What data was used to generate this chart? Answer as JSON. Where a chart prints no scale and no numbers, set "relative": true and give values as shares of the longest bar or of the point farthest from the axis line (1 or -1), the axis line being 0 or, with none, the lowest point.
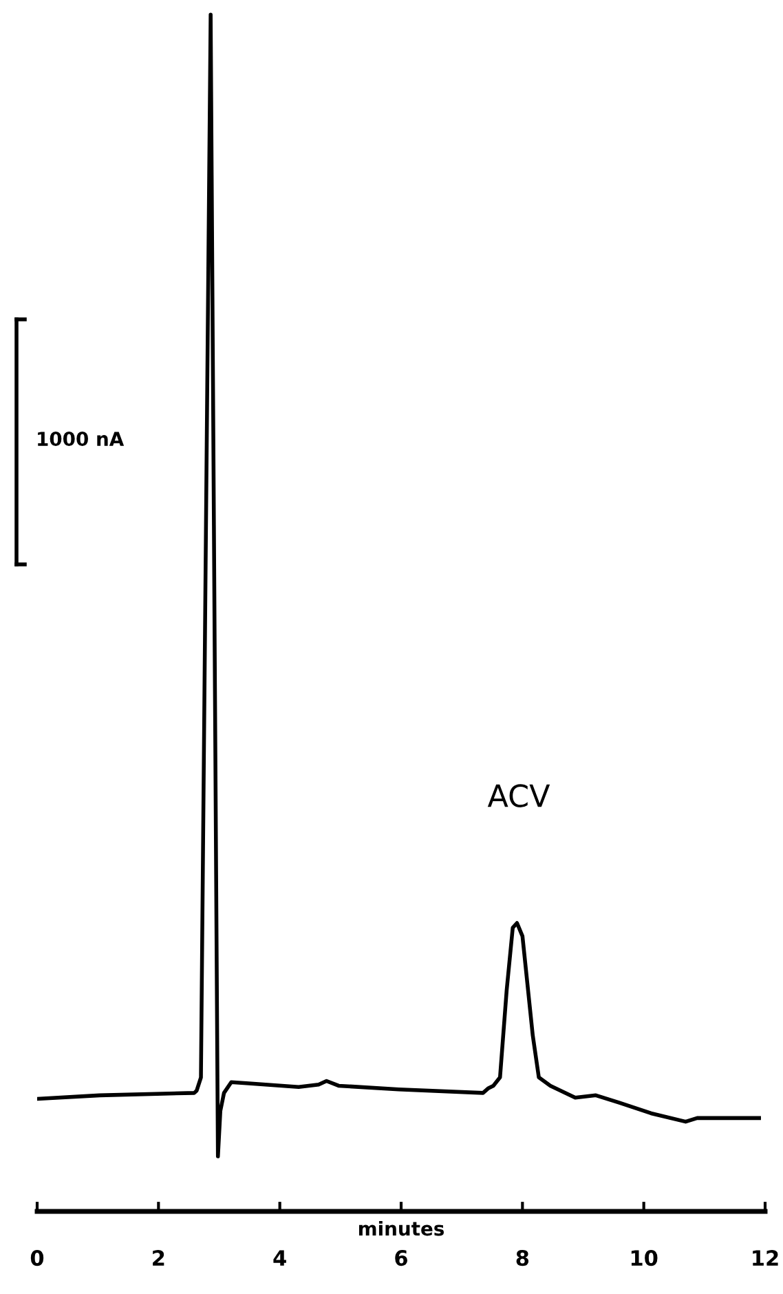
{
  "chart_data": {
    "type": "line",
    "relative": true,
    "xlabel": "minutes",
    "x": [
      0.0,
      1.03,
      2.59,
      2.63,
      2.7,
      2.86,
      2.98,
      3.02,
      3.08,
      3.2,
      3.49,
      4.31,
      4.64,
      4.77,
      4.97,
      5.96,
      7.35,
      7.44,
      7.52,
      7.63,
      7.74,
      7.84,
      7.91,
      8.0,
      8.17,
      8.27,
      8.46,
      8.87,
      9.21,
      9.59,
      10.12,
      10.69,
      10.88,
      11.9
    ],
    "series": [
      {
        "color": "#000000",
        "values": [
          0.094,
          0.097,
          0.099,
          0.101,
          0.112,
          1.0,
          0.046,
          0.084,
          0.099,
          0.108,
          0.107,
          0.104,
          0.106,
          0.109,
          0.105,
          0.102,
          0.099,
          0.103,
          0.105,
          0.112,
          0.185,
          0.237,
          0.241,
          0.23,
          0.147,
          0.112,
          0.105,
          0.095,
          0.097,
          0.091,
          0.082,
          0.075,
          0.078,
          0.078
        ]
      }
    ],
    "xlim": [
      0,
      12
    ],
    "xticks": [
      0,
      2,
      4,
      6,
      8,
      10,
      12
    ],
    "annotations": [
      "ACV",
      "1000 nA"
    ],
    "grid": false,
    "marker": "none",
    "line_style": "solid"
  }
}
